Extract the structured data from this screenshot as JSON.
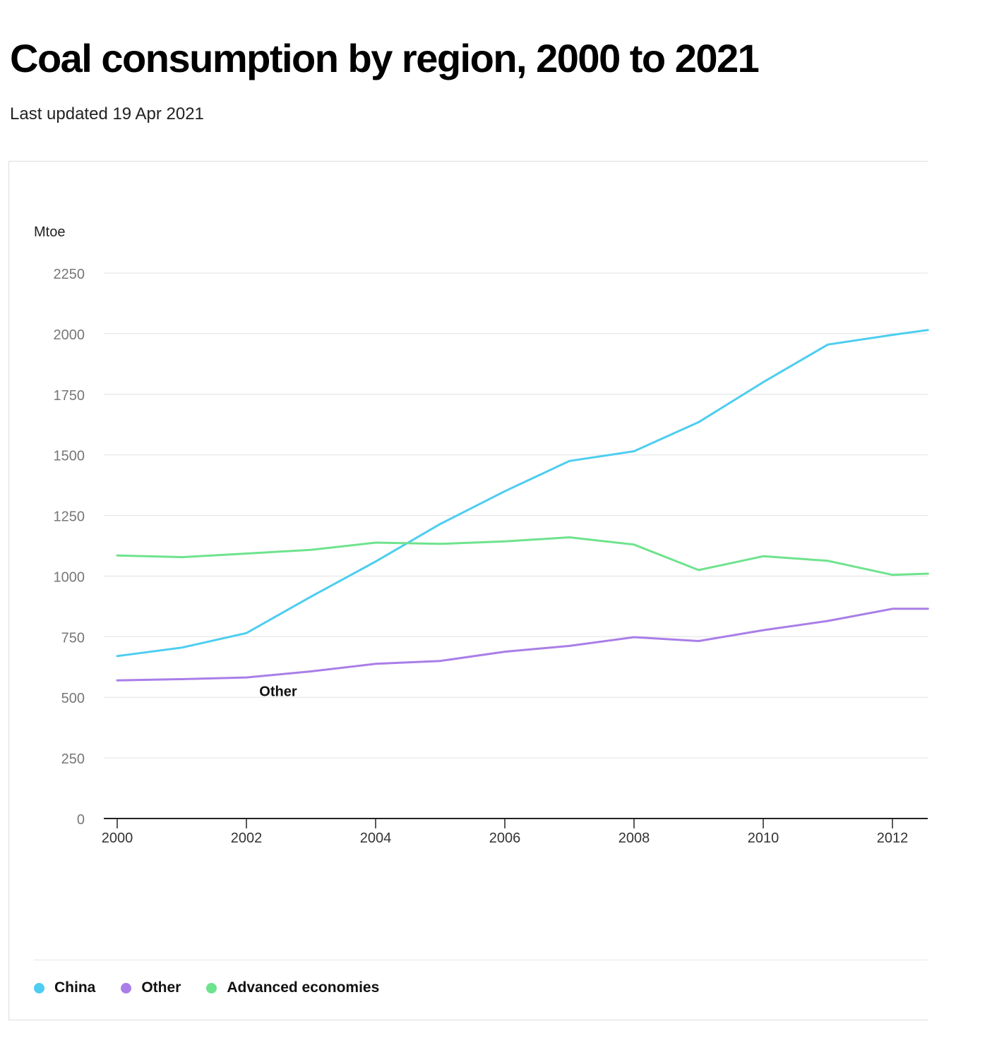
{
  "title": "Coal consumption by region, 2000 to 2021",
  "updated": "Last updated 19 Apr 2021",
  "chart_data": {
    "type": "line",
    "title": "Coal consumption by region, 2000 to 2021",
    "xlabel": "",
    "ylabel": "Mtoe",
    "ylim": [
      0,
      2250
    ],
    "yticks": [
      0,
      250,
      500,
      750,
      1000,
      1250,
      1500,
      1750,
      2000,
      2250
    ],
    "xticks": [
      2000,
      2002,
      2004,
      2006,
      2008,
      2010,
      2012
    ],
    "x": [
      2000,
      2001,
      2002,
      2003,
      2004,
      2005,
      2006,
      2007,
      2008,
      2009,
      2010,
      2011,
      2012,
      2012.55
    ],
    "grid": true,
    "series": [
      {
        "name": "China",
        "color": "#4dcdf0",
        "values": [
          670,
          705,
          765,
          915,
          1060,
          1215,
          1350,
          1475,
          1515,
          1635,
          1800,
          1955,
          1995,
          2015
        ]
      },
      {
        "name": "Other",
        "color": "#a97ee8",
        "values": [
          570,
          575,
          582,
          607,
          638,
          650,
          688,
          712,
          748,
          732,
          777,
          815,
          865,
          865
        ]
      },
      {
        "name": "Advanced economies",
        "color": "#6ee38d",
        "values": [
          1085,
          1078,
          1093,
          1108,
          1138,
          1133,
          1143,
          1160,
          1130,
          1025,
          1082,
          1063,
          1005,
          1010
        ]
      }
    ],
    "annotations": [
      {
        "text": "Other",
        "series": "Other",
        "x": 2002.2
      }
    ],
    "legend_position": "bottom-left"
  },
  "legend": {
    "items": [
      {
        "label": "China",
        "color": "#4dcdf0"
      },
      {
        "label": "Other",
        "color": "#a97ee8"
      },
      {
        "label": "Advanced economies",
        "color": "#6ee38d"
      }
    ]
  }
}
